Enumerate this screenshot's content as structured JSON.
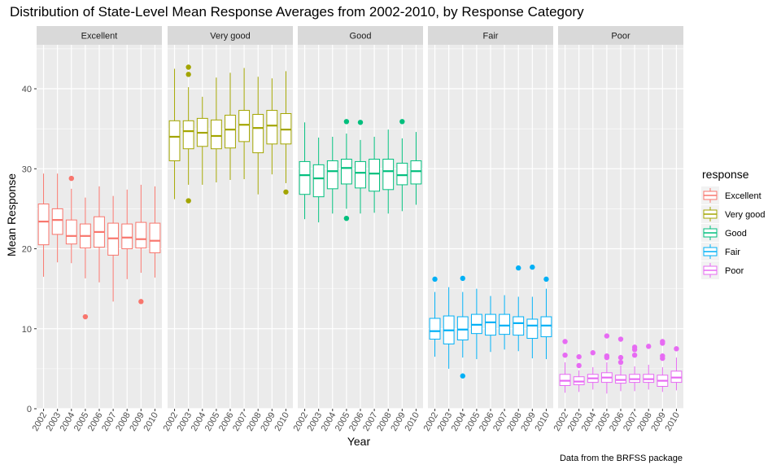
{
  "chart_data": {
    "type": "boxplot",
    "title": "Distribution of State-Level Mean Response Averages from 2002-2010, by Response Category",
    "xlabel": "Year",
    "ylabel": "Mean Response",
    "caption": "Data from the BRFSS package",
    "ylim": [
      0,
      45.5
    ],
    "yticks": [
      0,
      10,
      20,
      30,
      40
    ],
    "grid": true,
    "legend": {
      "title": "response",
      "position": "right"
    },
    "years": [
      "2002",
      "2003",
      "2004",
      "2005",
      "2006",
      "2007",
      "2008",
      "2009",
      "2010"
    ],
    "panels": [
      {
        "name": "Excellent",
        "color": "#F8766D",
        "boxes": [
          {
            "min": 16.5,
            "q1": 20.5,
            "median": 23.4,
            "q3": 25.6,
            "max": 29.4,
            "outliers": []
          },
          {
            "min": 18.3,
            "q1": 21.8,
            "median": 23.6,
            "q3": 25.0,
            "max": 29.4,
            "outliers": []
          },
          {
            "min": 18.2,
            "q1": 20.6,
            "median": 21.6,
            "q3": 23.6,
            "max": 27.5,
            "outliers": [
              28.8
            ]
          },
          {
            "min": 16.3,
            "q1": 20.1,
            "median": 21.6,
            "q3": 23.1,
            "max": 26.4,
            "outliers": [
              11.5
            ]
          },
          {
            "min": 15.8,
            "q1": 20.2,
            "median": 22.1,
            "q3": 24.0,
            "max": 27.8,
            "outliers": []
          },
          {
            "min": 13.4,
            "q1": 19.2,
            "median": 21.3,
            "q3": 23.2,
            "max": 26.6,
            "outliers": []
          },
          {
            "min": 16.2,
            "q1": 20.0,
            "median": 21.4,
            "q3": 23.1,
            "max": 27.4,
            "outliers": []
          },
          {
            "min": 17.0,
            "q1": 20.1,
            "median": 21.2,
            "q3": 23.3,
            "max": 28.0,
            "outliers": [
              13.4
            ]
          },
          {
            "min": 16.4,
            "q1": 19.5,
            "median": 21.0,
            "q3": 23.2,
            "max": 27.8,
            "outliers": []
          }
        ]
      },
      {
        "name": "Very good",
        "color": "#A3A500",
        "boxes": [
          {
            "min": 26.2,
            "q1": 31.0,
            "median": 34.0,
            "q3": 36.0,
            "max": 42.5,
            "outliers": []
          },
          {
            "min": 28.0,
            "q1": 32.5,
            "median": 34.7,
            "q3": 36.0,
            "max": 40.2,
            "outliers": [
              42.7,
              41.8,
              26.0
            ]
          },
          {
            "min": 28.0,
            "q1": 32.8,
            "median": 34.5,
            "q3": 36.3,
            "max": 39.0,
            "outliers": []
          },
          {
            "min": 28.3,
            "q1": 32.5,
            "median": 34.1,
            "q3": 36.1,
            "max": 41.4,
            "outliers": []
          },
          {
            "min": 28.6,
            "q1": 32.6,
            "median": 34.9,
            "q3": 36.7,
            "max": 42.0,
            "outliers": []
          },
          {
            "min": 28.7,
            "q1": 33.4,
            "median": 35.5,
            "q3": 37.3,
            "max": 42.6,
            "outliers": []
          },
          {
            "min": 26.8,
            "q1": 32.0,
            "median": 35.1,
            "q3": 36.8,
            "max": 41.5,
            "outliers": []
          },
          {
            "min": 29.3,
            "q1": 33.1,
            "median": 35.4,
            "q3": 37.3,
            "max": 41.3,
            "outliers": []
          },
          {
            "min": 28.2,
            "q1": 33.1,
            "median": 34.9,
            "q3": 36.9,
            "max": 42.2,
            "outliers": [
              27.1
            ]
          }
        ]
      },
      {
        "name": "Good",
        "color": "#00BF7D",
        "boxes": [
          {
            "min": 23.7,
            "q1": 26.8,
            "median": 29.2,
            "q3": 30.9,
            "max": 35.8,
            "outliers": []
          },
          {
            "min": 23.3,
            "q1": 26.5,
            "median": 28.8,
            "q3": 30.5,
            "max": 33.9,
            "outliers": []
          },
          {
            "min": 24.4,
            "q1": 27.5,
            "median": 29.7,
            "q3": 31.0,
            "max": 34.0,
            "outliers": []
          },
          {
            "min": 25.0,
            "q1": 28.1,
            "median": 30.1,
            "q3": 31.2,
            "max": 34.4,
            "outliers": [
              35.9,
              23.8
            ]
          },
          {
            "min": 24.4,
            "q1": 27.6,
            "median": 29.5,
            "q3": 30.9,
            "max": 33.6,
            "outliers": [
              35.8
            ]
          },
          {
            "min": 24.5,
            "q1": 27.2,
            "median": 29.4,
            "q3": 31.2,
            "max": 34.0,
            "outliers": []
          },
          {
            "min": 24.4,
            "q1": 27.4,
            "median": 29.7,
            "q3": 31.2,
            "max": 34.9,
            "outliers": []
          },
          {
            "min": 24.7,
            "q1": 28.0,
            "median": 29.2,
            "q3": 30.7,
            "max": 33.8,
            "outliers": [
              35.9
            ]
          },
          {
            "min": 25.5,
            "q1": 28.1,
            "median": 29.7,
            "q3": 31.0,
            "max": 34.6,
            "outliers": []
          }
        ]
      },
      {
        "name": "Fair",
        "color": "#00B0F6",
        "boxes": [
          {
            "min": 6.5,
            "q1": 8.7,
            "median": 9.7,
            "q3": 11.3,
            "max": 14.6,
            "outliers": [
              16.2
            ]
          },
          {
            "min": 5.0,
            "q1": 8.1,
            "median": 9.8,
            "q3": 11.6,
            "max": 15.2,
            "outliers": []
          },
          {
            "min": 6.4,
            "q1": 8.6,
            "median": 9.9,
            "q3": 11.5,
            "max": 14.6,
            "outliers": [
              16.3,
              4.1
            ]
          },
          {
            "min": 6.2,
            "q1": 9.4,
            "median": 10.5,
            "q3": 11.8,
            "max": 15.0,
            "outliers": []
          },
          {
            "min": 7.1,
            "q1": 9.2,
            "median": 10.8,
            "q3": 11.8,
            "max": 14.1,
            "outliers": []
          },
          {
            "min": 7.4,
            "q1": 9.3,
            "median": 10.4,
            "q3": 11.8,
            "max": 14.2,
            "outliers": []
          },
          {
            "min": 7.2,
            "q1": 9.2,
            "median": 10.7,
            "q3": 11.5,
            "max": 14.0,
            "outliers": [
              17.6
            ]
          },
          {
            "min": 6.3,
            "q1": 8.8,
            "median": 10.4,
            "q3": 11.2,
            "max": 14.0,
            "outliers": [
              17.7
            ]
          },
          {
            "min": 6.2,
            "q1": 9.0,
            "median": 10.4,
            "q3": 11.5,
            "max": 15.0,
            "outliers": [
              16.2
            ]
          }
        ]
      },
      {
        "name": "Poor",
        "color": "#E76BF3",
        "boxes": [
          {
            "min": 2.0,
            "q1": 2.9,
            "median": 3.5,
            "q3": 4.3,
            "max": 5.8,
            "outliers": [
              8.4,
              6.7
            ]
          },
          {
            "min": 2.1,
            "q1": 3.0,
            "median": 3.4,
            "q3": 4.0,
            "max": 4.8,
            "outliers": [
              6.5,
              5.4
            ]
          },
          {
            "min": 2.4,
            "q1": 3.3,
            "median": 3.8,
            "q3": 4.3,
            "max": 5.2,
            "outliers": [
              7.0
            ]
          },
          {
            "min": 1.9,
            "q1": 3.3,
            "median": 3.9,
            "q3": 4.5,
            "max": 5.8,
            "outliers": [
              9.1,
              6.6,
              6.4
            ]
          },
          {
            "min": 2.2,
            "q1": 3.2,
            "median": 3.6,
            "q3": 4.2,
            "max": 5.4,
            "outliers": [
              8.7,
              6.4,
              5.8
            ]
          },
          {
            "min": 2.2,
            "q1": 3.3,
            "median": 3.7,
            "q3": 4.3,
            "max": 5.3,
            "outliers": [
              7.7,
              7.4,
              6.7
            ]
          },
          {
            "min": 2.4,
            "q1": 3.3,
            "median": 3.7,
            "q3": 4.3,
            "max": 5.5,
            "outliers": [
              7.8
            ]
          },
          {
            "min": 2.1,
            "q1": 2.8,
            "median": 3.5,
            "q3": 4.2,
            "max": 5.2,
            "outliers": [
              8.4,
              8.2,
              6.6,
              6.3
            ]
          },
          {
            "min": 2.3,
            "q1": 3.3,
            "median": 3.9,
            "q3": 4.7,
            "max": 6.4,
            "outliers": [
              7.5
            ]
          }
        ]
      }
    ]
  }
}
